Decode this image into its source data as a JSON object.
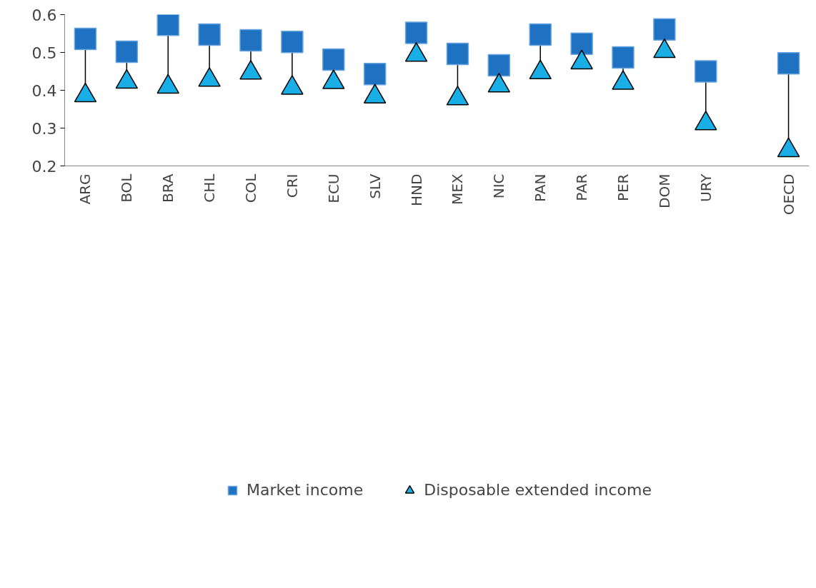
{
  "chart_data": {
    "type": "scatter",
    "categories": [
      "ARG",
      "BOL",
      "BRA",
      "CHL",
      "COL",
      "CRI",
      "ECU",
      "SLV",
      "HND",
      "MEX",
      "NIC",
      "PAN",
      "PAR",
      "PER",
      "DOM",
      "URY",
      null,
      "OECD"
    ],
    "series": [
      {
        "name": "Market income",
        "color": "#1f72c2",
        "marker": "square",
        "values": [
          0.536,
          0.502,
          0.573,
          0.547,
          0.532,
          0.528,
          0.481,
          0.443,
          0.552,
          0.496,
          0.466,
          0.547,
          0.523,
          0.487,
          0.561,
          0.45,
          null,
          0.471
        ]
      },
      {
        "name": "Disposable extended income",
        "color": "#1aaee6",
        "marker": "triangle",
        "values": [
          0.386,
          0.422,
          0.409,
          0.427,
          0.446,
          0.406,
          0.421,
          0.383,
          0.493,
          0.378,
          0.412,
          0.447,
          0.473,
          0.419,
          0.503,
          0.312,
          null,
          0.241
        ]
      }
    ],
    "ylim": [
      0.2,
      0.6
    ],
    "yticks": [
      0.2,
      0.3,
      0.4,
      0.5,
      0.6
    ],
    "grid": false,
    "legend": "bottom"
  }
}
